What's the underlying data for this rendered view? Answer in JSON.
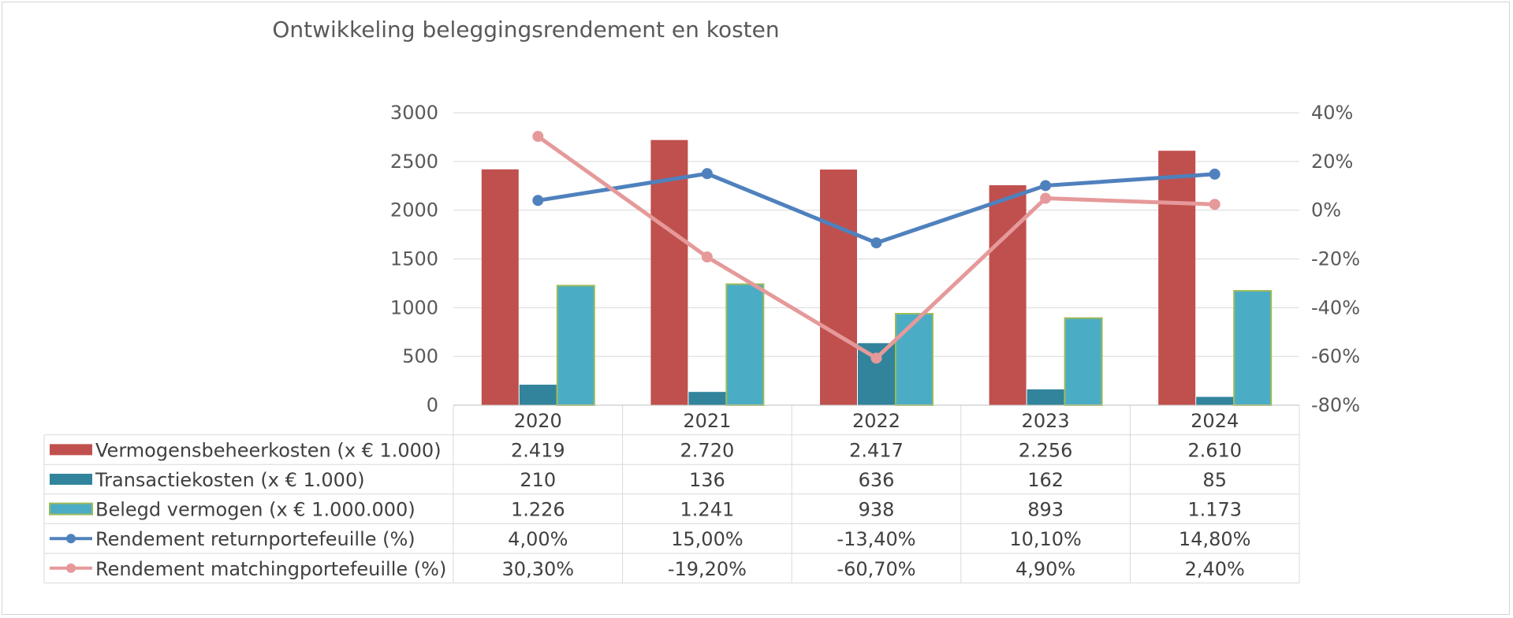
{
  "chart_data": {
    "type": "bar",
    "title": "Ontwikkeling beleggingsrendement en kosten",
    "categories": [
      "2020",
      "2021",
      "2022",
      "2023",
      "2024"
    ],
    "y_left": {
      "min": 0,
      "max": 3000,
      "step": 500,
      "ticks": [
        "0",
        "500",
        "1000",
        "1500",
        "2000",
        "2500",
        "3000"
      ]
    },
    "y_right": {
      "min": -80,
      "max": 40,
      "step": 20,
      "unit": "%",
      "ticks": [
        "-80%",
        "-60%",
        "-40%",
        "-20%",
        "0%",
        "20%",
        "40%"
      ]
    },
    "grid": true,
    "legend": "data-table",
    "series": [
      {
        "name": "Vermogensbeheerkosten (x € 1.000)",
        "kind": "bar",
        "axis": "left",
        "color": "#c0504d",
        "values": [
          2419,
          2720,
          2417,
          2256,
          2610
        ],
        "labels": [
          "2.419",
          "2.720",
          "2.417",
          "2.256",
          "2.610"
        ]
      },
      {
        "name": "Transactiekosten (x € 1.000)",
        "kind": "bar",
        "axis": "left",
        "color": "#31849b",
        "values": [
          210,
          136,
          636,
          162,
          85
        ],
        "labels": [
          "210",
          "136",
          "636",
          "162",
          "85"
        ]
      },
      {
        "name": "Belegd vermogen (x € 1.000.000)",
        "kind": "bar",
        "axis": "left",
        "color": "#4bacc6",
        "border": "#9bbb59",
        "values": [
          1226,
          1241,
          938,
          893,
          1173
        ],
        "labels": [
          "1.226",
          "1.241",
          "938",
          "893",
          "1.173"
        ]
      },
      {
        "name": "Rendement returnportefeuille (%)",
        "kind": "line",
        "axis": "right",
        "color": "#4f81bd",
        "values": [
          4.0,
          15.0,
          -13.4,
          10.1,
          14.8
        ],
        "labels": [
          "4,00%",
          "15,00%",
          "-13,40%",
          "10,10%",
          "14,80%"
        ]
      },
      {
        "name": "Rendement matchingportefeuille (%)",
        "kind": "line",
        "axis": "right",
        "color": "#e6999a",
        "values": [
          30.3,
          -19.2,
          -60.7,
          4.9,
          2.4
        ],
        "labels": [
          "30,30%",
          "-19,20%",
          "-60,70%",
          "4,90%",
          "2,40%"
        ]
      }
    ]
  }
}
